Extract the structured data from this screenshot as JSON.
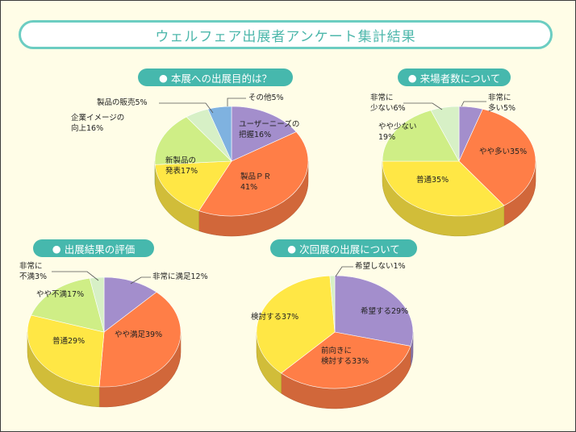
{
  "title": "ウェルフェア出展者アンケート集計結果",
  "bullet": "●",
  "colors": {
    "frame_bg": "#fffde7",
    "accent": "#46b8ad",
    "purple": "#a38ecc",
    "orange": "#ff7e47",
    "yellow": "#ffe745",
    "green": "#cfee86",
    "lightgreen": "#d7f0c6",
    "blue": "#7fb2e0"
  },
  "chart_data": [
    {
      "type": "pie",
      "title": "本展への出展目的は？",
      "slices": [
        {
          "label": [
            "ユーザーニーズの",
            "把握16%"
          ],
          "value": 16,
          "color": "#a38ecc"
        },
        {
          "label": [
            "製品ＰＲ",
            "41%"
          ],
          "value": 41,
          "color": "#ff7e47"
        },
        {
          "label": [
            "新製品の",
            "発表17%"
          ],
          "value": 17,
          "color": "#ffe745"
        },
        {
          "label": [
            "企業イメージの",
            "向上16%"
          ],
          "value": 16,
          "color": "#cfee86"
        },
        {
          "label": [
            "製品の販売5%"
          ],
          "value": 5,
          "color": "#d7f0c6"
        },
        {
          "label": [
            "その他5%"
          ],
          "value": 5,
          "color": "#7fb2e0"
        }
      ]
    },
    {
      "type": "pie",
      "title": "来場者数について",
      "slices": [
        {
          "label": [
            "非常に",
            "多い5%"
          ],
          "value": 5,
          "color": "#a38ecc"
        },
        {
          "label": [
            "やや多い35%"
          ],
          "value": 35,
          "color": "#ff7e47"
        },
        {
          "label": [
            "普通35%"
          ],
          "value": 35,
          "color": "#ffe745"
        },
        {
          "label": [
            "やや少ない",
            "19%"
          ],
          "value": 19,
          "color": "#cfee86"
        },
        {
          "label": [
            "非常に",
            "少ない6%"
          ],
          "value": 6,
          "color": "#d7f0c6"
        }
      ]
    },
    {
      "type": "pie",
      "title": "出展結果の評価",
      "slices": [
        {
          "label": [
            "非常に満足12%"
          ],
          "value": 12,
          "color": "#a38ecc"
        },
        {
          "label": [
            "やや満足39%"
          ],
          "value": 39,
          "color": "#ff7e47"
        },
        {
          "label": [
            "普通29%"
          ],
          "value": 29,
          "color": "#ffe745"
        },
        {
          "label": [
            "やや不満17%"
          ],
          "value": 17,
          "color": "#cfee86"
        },
        {
          "label": [
            "非常に",
            "不満3%"
          ],
          "value": 3,
          "color": "#d7f0c6"
        }
      ]
    },
    {
      "type": "pie",
      "title": "次回展の出展について",
      "slices": [
        {
          "label": [
            "希望する29%"
          ],
          "value": 29,
          "color": "#a38ecc"
        },
        {
          "label": [
            "前向きに",
            "検討する33%"
          ],
          "value": 33,
          "color": "#ff7e47"
        },
        {
          "label": [
            "検討する37%"
          ],
          "value": 37,
          "color": "#ffe745"
        },
        {
          "label": [
            "希望しない1%"
          ],
          "value": 1,
          "color": "#d7f0c6"
        }
      ]
    }
  ]
}
